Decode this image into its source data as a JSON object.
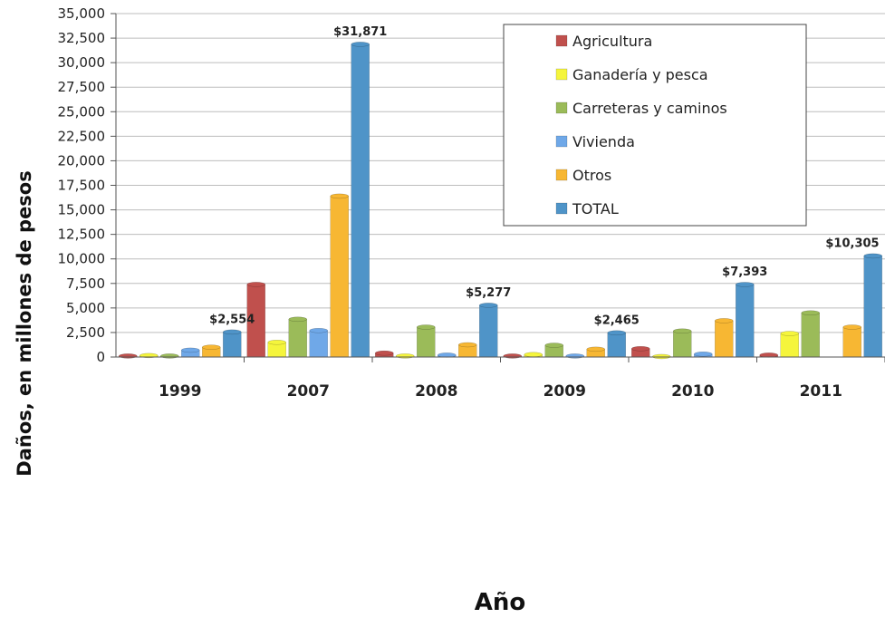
{
  "chart_data": {
    "type": "bar",
    "xlabel": "Año",
    "ylabel": "Daños, en millones de pesos",
    "ylim": [
      0,
      35000
    ],
    "ytick_labels": [
      "0",
      "2,500",
      "5,000",
      "7,500",
      "10,000",
      "12,500",
      "15,000",
      "17,500",
      "20,000",
      "22,500",
      "25,000",
      "27,500",
      "30,000",
      "32,500",
      "35,000"
    ],
    "categories": [
      "1999",
      "2007",
      "2008",
      "2009",
      "2010",
      "2011"
    ],
    "series": [
      {
        "name": "Agricultura",
        "color": "#c0504d",
        "values": [
          100,
          7400,
          400,
          100,
          850,
          200
        ]
      },
      {
        "name": "Ganadería y pesca",
        "color": "#f5f53c",
        "values": [
          150,
          1500,
          100,
          250,
          50,
          2400
        ]
      },
      {
        "name": "Carreteras y caminos",
        "color": "#9bbb59",
        "values": [
          100,
          3850,
          3050,
          1200,
          2650,
          4500
        ]
      },
      {
        "name": "Vivienda",
        "color": "#6fa8e8",
        "values": [
          700,
          2700,
          200,
          100,
          300,
          0
        ]
      },
      {
        "name": "Otros",
        "color": "#f7b733",
        "values": [
          1000,
          16400,
          1250,
          800,
          3700,
          3050
        ]
      },
      {
        "name": "TOTAL",
        "color": "#4f94c8",
        "values": [
          2554,
          31871,
          5277,
          2465,
          7393,
          10305
        ]
      }
    ],
    "data_labels": [
      "$2,554",
      "$31,871",
      "$5,277",
      "$2,465",
      "$7,393",
      "$10,305"
    ],
    "grid": true,
    "legend_position": "top-right"
  }
}
